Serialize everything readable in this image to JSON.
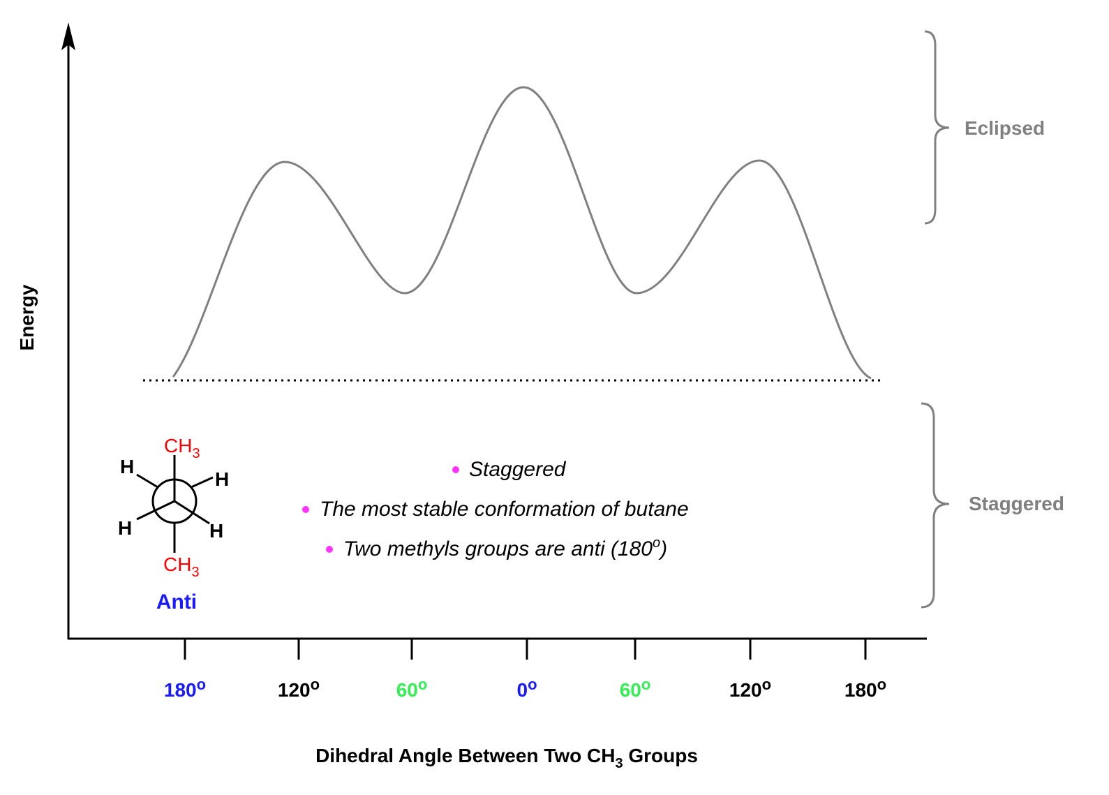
{
  "y_axis_label": "Energy",
  "x_axis_label": {
    "text": "Dihedral Angle Between Two CH",
    "sub": "3",
    "after": " Groups"
  },
  "x_ticks": [
    {
      "text": "180",
      "sup": "o",
      "color": "#1a1aff"
    },
    {
      "text": "120",
      "sup": "o",
      "color": "#000000"
    },
    {
      "text": "60",
      "sup": "o",
      "color": "#33ee55"
    },
    {
      "text": "0",
      "sup": "o",
      "color": "#1a1aff"
    },
    {
      "text": "60",
      "sup": "o",
      "color": "#33ee55"
    },
    {
      "text": "120",
      "sup": "o",
      "color": "#000000"
    },
    {
      "text": "180",
      "sup": "o",
      "color": "#000000"
    }
  ],
  "brackets": {
    "top": "Eclipsed",
    "bottom": "Staggered"
  },
  "newman": {
    "top": {
      "text": "CH",
      "sub": "3"
    },
    "bottom": {
      "text": "CH",
      "sub": "3"
    },
    "h_labels": [
      "H",
      "H",
      "H",
      "H"
    ],
    "name": "Anti"
  },
  "bullets": [
    {
      "text": "Staggered"
    },
    {
      "text": "The most stable conformation of butane"
    },
    {
      "text": "Two methyls groups are anti (180",
      "sup": "o",
      "after": ")"
    }
  ]
}
